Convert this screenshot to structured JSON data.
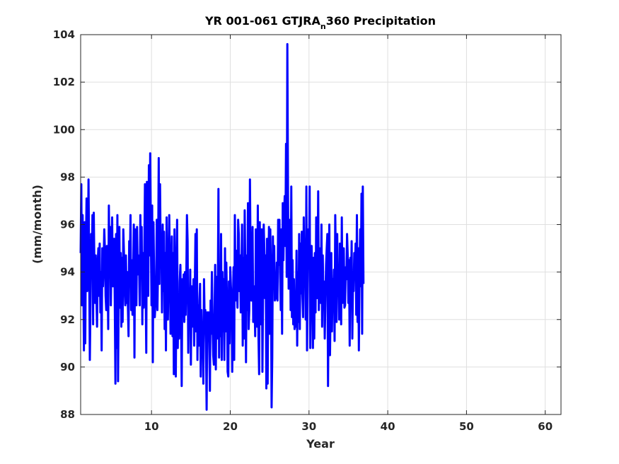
{
  "chart_data": {
    "type": "line",
    "title_main": "YR 001-061 GTJRA",
    "title_subscript": "n",
    "title_rest": "360 Precipitation",
    "xlabel": "Year",
    "ylabel": "(mm/month)",
    "xlim": [
      1,
      62
    ],
    "ylim": [
      88,
      104
    ],
    "xticks": [
      10,
      20,
      30,
      40,
      50,
      60
    ],
    "yticks": [
      88,
      90,
      92,
      94,
      96,
      98,
      100,
      102,
      104
    ],
    "grid": true,
    "line_color": "#0000ff",
    "series": [
      {
        "x_start": 1.0,
        "x_step": 0.08333,
        "values": [
          94.8,
          97.7,
          92.6,
          96.4,
          94.0,
          90.7,
          96.1,
          91.0,
          95.0,
          97.1,
          93.2,
          94.6,
          97.9,
          94.3,
          90.3,
          92.7,
          95.6,
          94.1,
          96.4,
          91.8,
          96.5,
          94.1,
          92.7,
          94.7,
          93.0,
          91.7,
          94.4,
          95.0,
          93.0,
          95.2,
          92.3,
          94.0,
          90.7,
          95.0,
          93.4,
          94.3,
          95.8,
          94.9,
          93.0,
          92.4,
          95.1,
          94.2,
          91.6,
          96.8,
          94.2,
          95.9,
          92.6,
          94.7,
          96.3,
          93.4,
          94.1,
          95.4,
          92.8,
          89.3,
          95.6,
          90.8,
          96.4,
          89.4,
          93.1,
          95.9,
          92.5,
          94.8,
          91.7,
          94.6,
          91.9,
          95.8,
          94.8,
          93.4,
          92.6,
          94.7,
          92.7,
          94.0,
          92.6,
          91.3,
          95.3,
          94.3,
          96.4,
          92.4,
          94.5,
          92.2,
          93.8,
          96.0,
          90.4,
          95.8,
          93.5,
          92.6,
          95.9,
          93.9,
          94.7,
          94.5,
          92.6,
          96.4,
          94.2,
          95.9,
          91.8,
          94.8,
          92.5,
          94.7,
          97.7,
          93.5,
          90.6,
          97.8,
          94.6,
          93.0,
          98.5,
          94.7,
          99.0,
          95.6,
          92.6,
          96.8,
          90.2,
          96.1,
          93.7,
          92.1,
          92.7,
          93.3,
          96.2,
          92.4,
          94.3,
          98.8,
          93.5,
          97.7,
          94.6,
          95.4,
          92.3,
          96.0,
          93.2,
          95.7,
          91.6,
          94.8,
          90.7,
          96.3,
          92.0,
          92.0,
          94.6,
          96.4,
          94.2,
          91.4,
          93.6,
          95.5,
          91.3,
          94.8,
          89.7,
          95.8,
          93.3,
          89.6,
          93.6,
          96.2,
          90.8,
          93.0,
          91.2,
          93.6,
          94.3,
          92.3,
          89.2,
          93.7,
          92.7,
          93.9,
          91.9,
          94.0,
          92.2,
          93.7,
          96.4,
          95.3,
          90.6,
          93.3,
          91.8,
          94.1,
          90.1,
          93.4,
          91.7,
          92.2,
          93.7,
          90.9,
          93.4,
          95.6,
          91.5,
          95.8,
          90.3,
          92.6,
          90.9,
          92.8,
          93.5,
          89.6,
          92.4,
          91.0,
          91.6,
          89.3,
          93.7,
          91.9,
          92.4,
          91.0,
          88.2,
          92.3,
          91.3,
          92.3,
          91.0,
          89.0,
          92.8,
          91.4,
          94.0,
          91.8,
          90.5,
          90.1,
          92.1,
          94.3,
          89.9,
          93.8,
          91.2,
          92.9,
          97.5,
          90.4,
          93.6,
          91.3,
          95.6,
          90.3,
          94.0,
          91.5,
          93.7,
          90.3,
          95.0,
          91.5,
          94.4,
          92.7,
          89.8,
          89.6,
          93.6,
          91.0,
          94.2,
          93.4,
          92.9,
          89.8,
          92.5,
          94.2,
          90.3,
          96.4,
          92.8,
          94.9,
          93.5,
          92.5,
          96.2,
          95.6,
          93.2,
          94.7,
          92.3,
          93.7,
          96.0,
          90.9,
          94.6,
          91.2,
          96.6,
          94.0,
          90.2,
          94.7,
          92.4,
          96.9,
          91.6,
          92.4,
          97.9,
          94.5,
          92.8,
          93.7,
          95.9,
          91.9,
          93.4,
          92.8,
          91.3,
          95.8,
          93.2,
          91.7,
          96.8,
          91.3,
          89.7,
          96.1,
          93.4,
          91.8,
          95.8,
          89.8,
          93.2,
          96.0,
          94.8,
          92.9,
          94.7,
          89.1,
          95.4,
          89.3,
          93.8,
          95.9,
          91.4,
          95.8,
          94.0,
          88.3,
          90.4,
          95.5,
          93.6,
          95.1,
          92.8,
          92.9,
          93.0,
          94.4,
          92.8,
          96.2,
          94.3,
          96.2,
          93.9,
          92.4,
          95.8,
          91.4,
          96.9,
          94.5,
          96.3,
          97.2,
          95.1,
          99.4,
          93.8,
          103.6,
          97.4,
          93.3,
          94.2,
          96.2,
          92.4,
          97.6,
          92.1,
          94.5,
          91.8,
          93.7,
          91.6,
          92.6,
          91.7,
          94.9,
          90.9,
          94.0,
          91.9,
          95.6,
          91.6,
          95.2,
          93.1,
          95.7,
          93.0,
          92.1,
          96.3,
          93.8,
          94.9,
          92.0,
          97.6,
          90.7,
          93.5,
          95.8,
          94.3,
          97.6,
          90.8,
          94.0,
          95.1,
          93.7,
          90.8,
          94.6,
          91.2,
          94.8,
          92.3,
          96.3,
          92.9,
          93.7,
          97.4,
          92.4,
          95.0,
          93.9,
          92.7,
          96.0,
          91.7,
          94.7,
          92.6,
          93.6,
          91.2,
          92.8,
          94.3,
          95.0,
          95.6,
          89.2,
          93.1,
          96.0,
          90.5,
          92.9,
          94.8,
          91.5,
          93.7,
          92.9,
          94.1,
          91.1,
          96.4,
          94.2,
          91.9,
          95.6,
          93.0,
          94.1,
          92.0,
          95.2,
          94.6,
          91.8,
          96.3,
          92.7,
          94.6,
          95.0,
          92.5,
          92.6,
          94.2,
          93.7,
          95.6,
          94.7,
          92.7,
          94.5,
          90.9,
          94.6,
          92.8,
          95.3,
          91.2,
          93.6,
          93.2,
          94.8,
          93.8,
          95.2,
          92.2,
          96.4,
          91.9,
          95.0,
          90.7,
          93.8,
          95.8,
          93.4,
          97.3,
          91.4,
          97.6,
          93.5
        ]
      }
    ]
  }
}
